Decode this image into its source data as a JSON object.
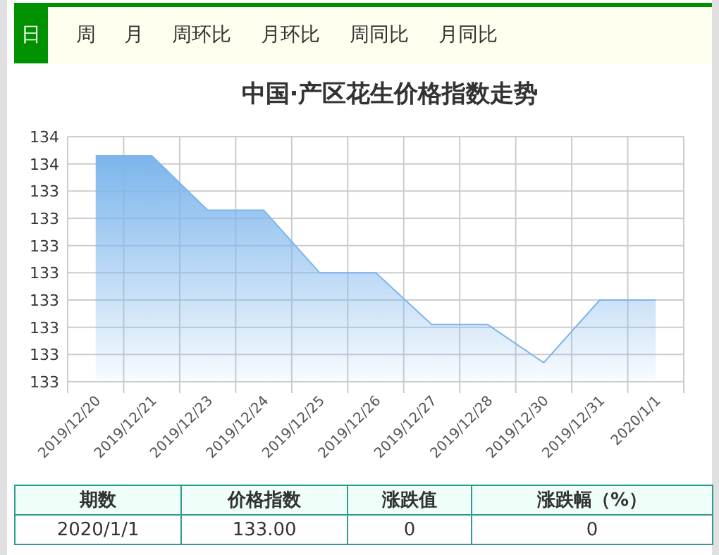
{
  "chart_data": {
    "type": "area",
    "title": "中国·产区花生价格指数走势",
    "categories": [
      "2019/12/20",
      "2019/12/21",
      "2019/12/23",
      "2019/12/24",
      "2019/12/25",
      "2019/12/26",
      "2019/12/27",
      "2019/12/28",
      "2019/12/30",
      "2019/12/31",
      "2020/1/1"
    ],
    "series": [
      {
        "color": "#7cb5ec",
        "values": [
          133.53,
          133.53,
          133.33,
          133.33,
          133.1,
          133.1,
          132.91,
          132.91,
          132.77,
          133.0,
          133.0
        ]
      }
    ],
    "ylim": [
      132.7,
      133.6
    ],
    "yticks": [
      {
        "value": 132.7,
        "label": "133"
      },
      {
        "value": 132.8,
        "label": "133"
      },
      {
        "value": 132.9,
        "label": "133"
      },
      {
        "value": 133.0,
        "label": "133"
      },
      {
        "value": 133.1,
        "label": "133"
      },
      {
        "value": 133.2,
        "label": "133"
      },
      {
        "value": 133.3,
        "label": "133"
      },
      {
        "value": 133.4,
        "label": "133"
      },
      {
        "value": 133.5,
        "label": "134"
      },
      {
        "value": 133.6,
        "label": "134"
      }
    ],
    "grid": true,
    "annotations": [
      "日",
      "周",
      "月",
      "周环比",
      "月环比",
      "周同比",
      "月同比",
      "期数",
      "价格指数",
      "涨跌值",
      "涨跌幅（%）",
      "2020/1/1",
      "133.00",
      "0",
      "0"
    ]
  }
}
